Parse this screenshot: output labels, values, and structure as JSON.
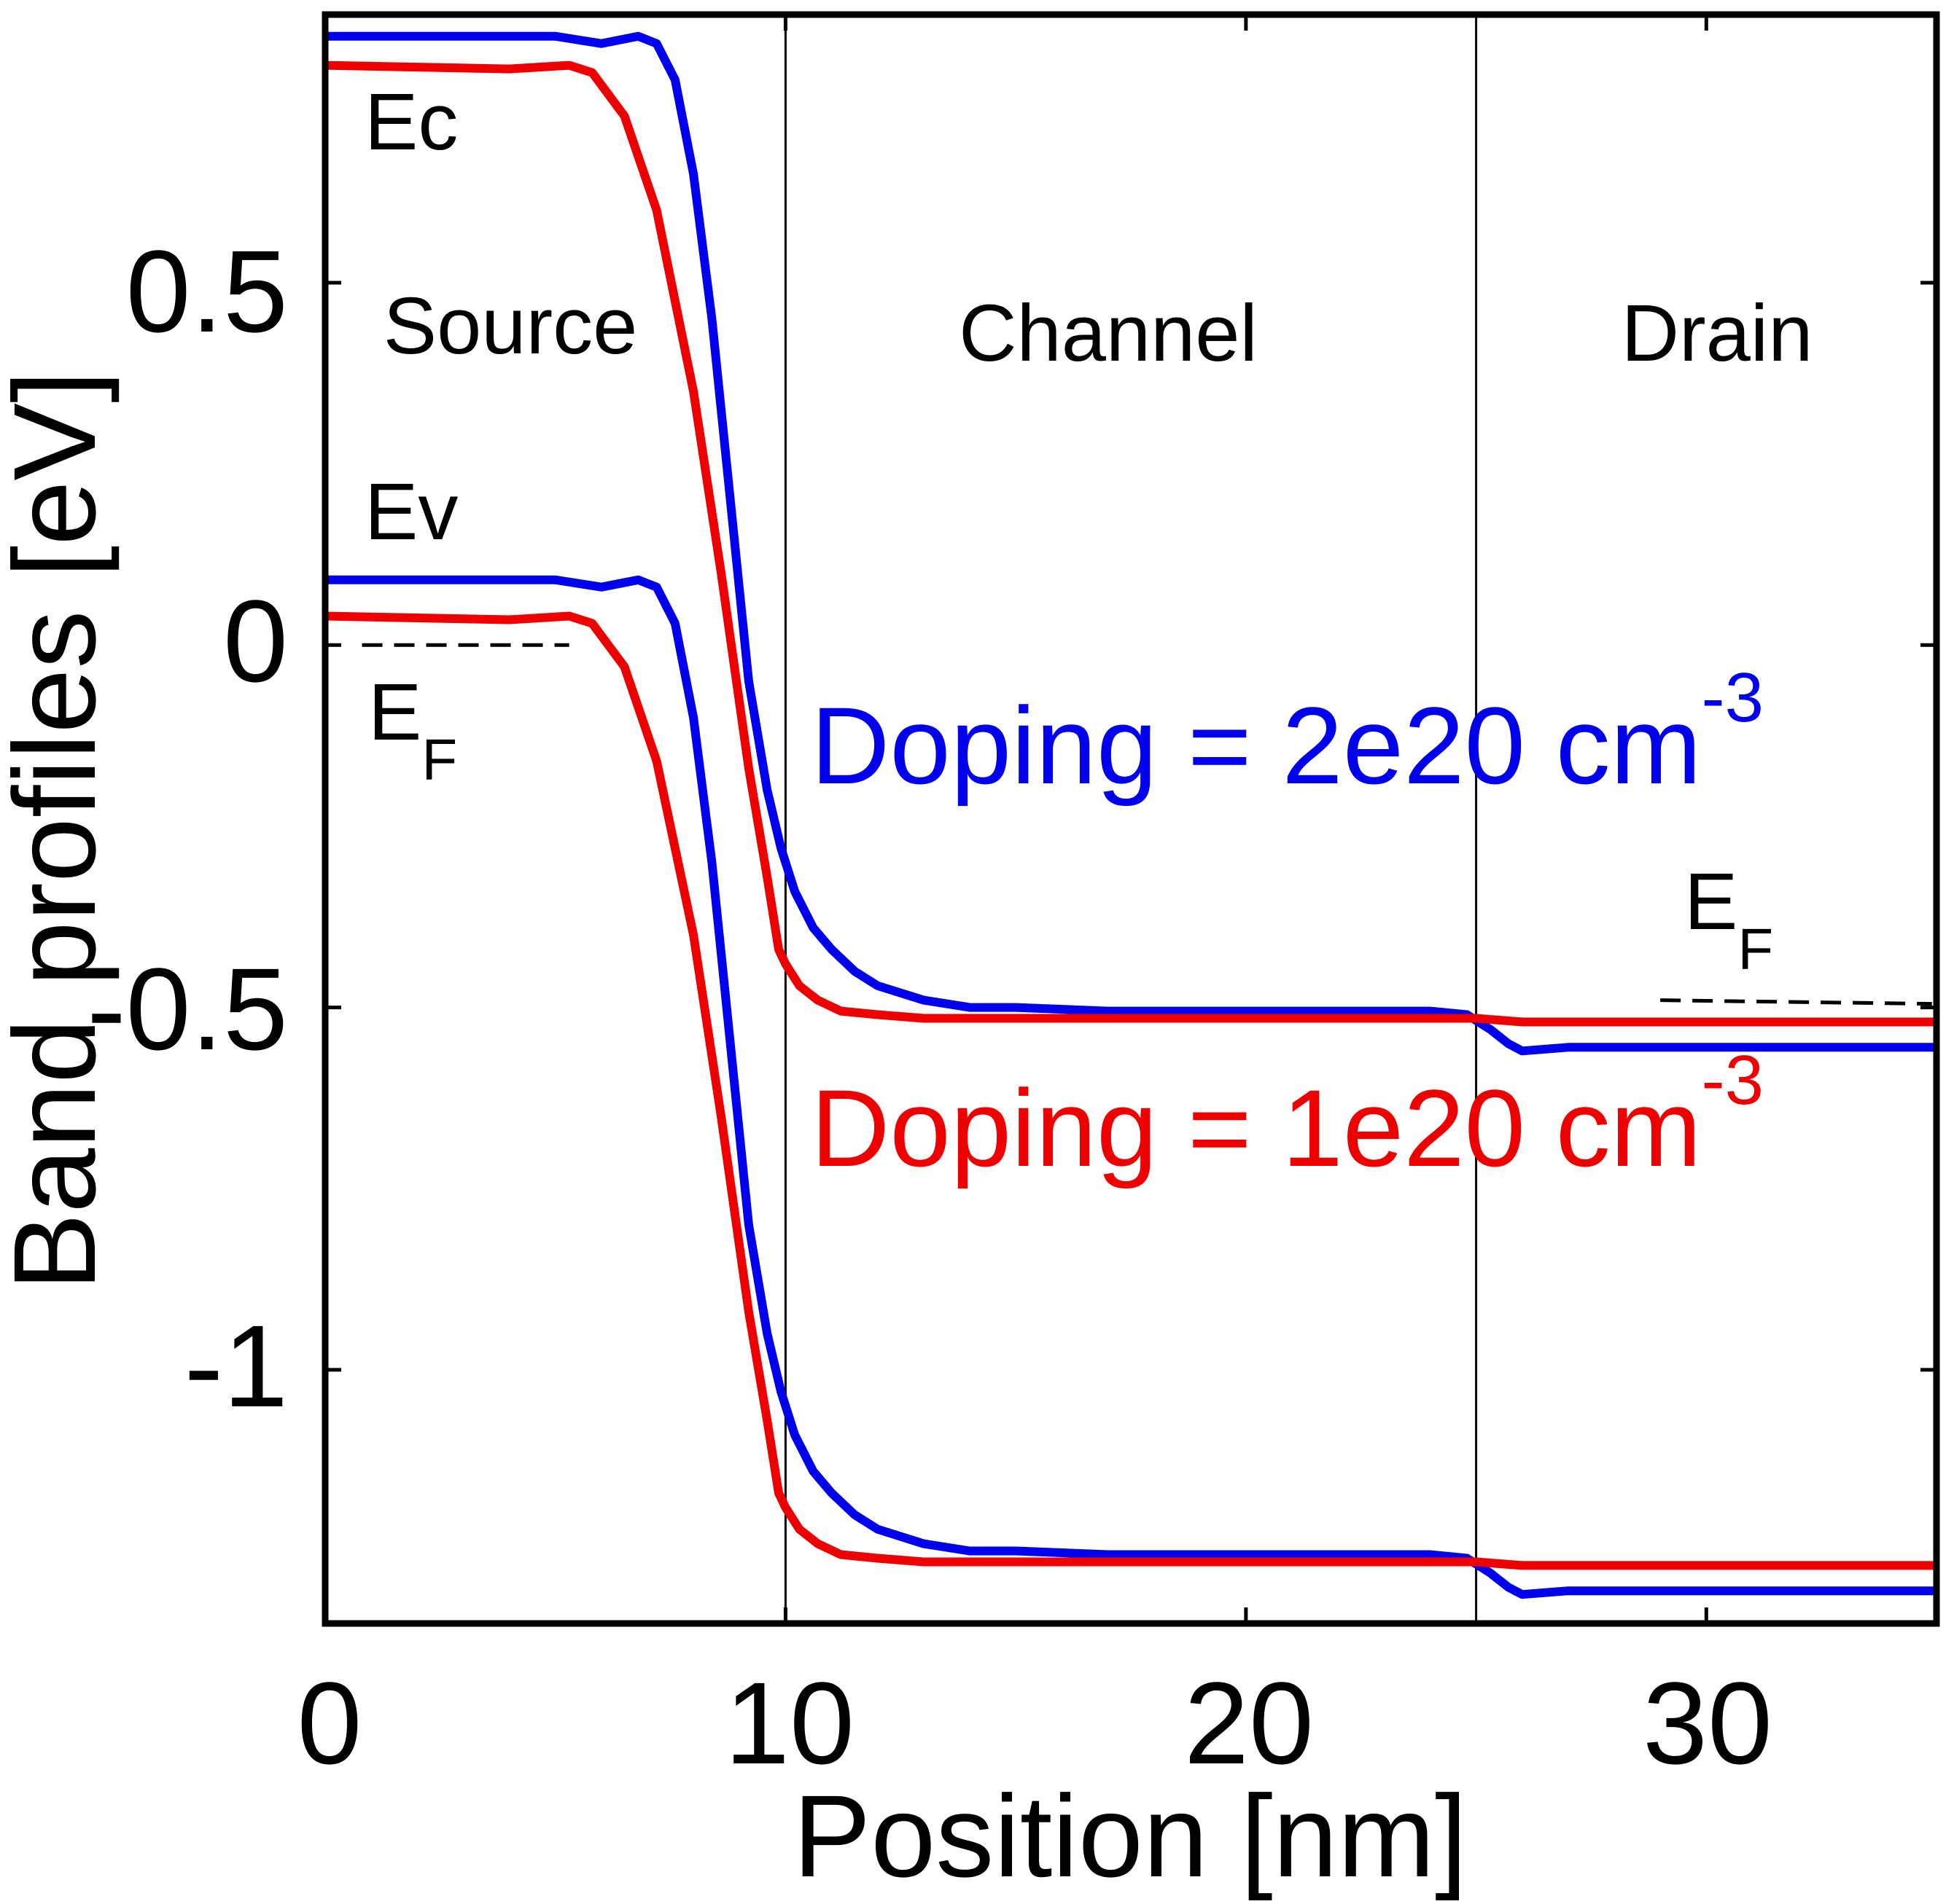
{
  "chart_data": {
    "type": "line",
    "title": "",
    "xlabel": "Position [nm]",
    "ylabel": "Band profiles [eV]",
    "xlim": [
      0,
      35
    ],
    "ylim": [
      -1.35,
      0.87
    ],
    "xticks": [
      0,
      10,
      20,
      30
    ],
    "xtick_labels": [
      "0",
      "10",
      "20",
      "30"
    ],
    "yticks": [
      0.5,
      0,
      -0.5,
      -1
    ],
    "ytick_labels": [
      "0.5",
      "0",
      "-0.5",
      "-1"
    ],
    "grid": false,
    "region_boundaries": [
      10,
      25
    ],
    "regions": [
      {
        "name": "Source",
        "label": "Source"
      },
      {
        "name": "Channel",
        "label": "Channel"
      },
      {
        "name": "Drain",
        "label": "Drain"
      }
    ],
    "band_labels": {
      "ec": "Ec",
      "ev": "Ev",
      "ef_main": "E",
      "ef_sub": "F"
    },
    "fermi_levels": [
      {
        "name": "source",
        "x": [
          0.8,
          5.3
        ],
        "y": [
          0.0,
          0.0
        ]
      },
      {
        "name": "drain",
        "x": [
          29.0,
          34.9
        ],
        "y": [
          -0.49,
          -0.495
        ]
      }
    ],
    "annotations": {
      "blue": {
        "main": "Doping = 2e20 cm",
        "sup": "-3"
      },
      "red": {
        "main": "Doping = 1e20 cm",
        "sup": "-3"
      }
    },
    "colors": {
      "blue": "#0000ee",
      "red": "#ee0000",
      "axis": "#000000"
    },
    "series": [
      {
        "name": "Ec (Doping = 2e20 cm-3)",
        "color": "#0000ee",
        "x": [
          0,
          5.0,
          6.0,
          6.8,
          7.2,
          7.6,
          8.0,
          8.4,
          8.8,
          9.2,
          9.6,
          9.9,
          10.2,
          10.6,
          11.0,
          11.5,
          12.0,
          13.0,
          14.0,
          15.0,
          17.0,
          20.0,
          24.0,
          24.8,
          25.3,
          25.7,
          26.0,
          27.0,
          30.0,
          35.0
        ],
        "y": [
          0.84,
          0.84,
          0.83,
          0.84,
          0.83,
          0.78,
          0.65,
          0.45,
          0.2,
          -0.05,
          -0.2,
          -0.28,
          -0.34,
          -0.39,
          -0.42,
          -0.45,
          -0.47,
          -0.49,
          -0.5,
          -0.5,
          -0.505,
          -0.505,
          -0.505,
          -0.51,
          -0.53,
          -0.55,
          -0.56,
          -0.555,
          -0.555,
          -0.555
        ]
      },
      {
        "name": "Ec (Doping = 1e20 cm-3)",
        "color": "#ee0000",
        "x": [
          0,
          4.0,
          5.3,
          5.8,
          6.5,
          7.2,
          8.0,
          8.6,
          9.2,
          9.6,
          9.85,
          10.0,
          10.3,
          10.7,
          11.2,
          12.0,
          13.0,
          15.0,
          20.0,
          24.0,
          25.0,
          26.0,
          30.0,
          35.0
        ],
        "y": [
          0.8,
          0.795,
          0.8,
          0.79,
          0.73,
          0.6,
          0.35,
          0.1,
          -0.17,
          -0.32,
          -0.42,
          -0.44,
          -0.47,
          -0.49,
          -0.505,
          -0.51,
          -0.515,
          -0.515,
          -0.515,
          -0.515,
          -0.515,
          -0.52,
          -0.52,
          -0.52
        ]
      },
      {
        "name": "Ev (Doping = 2e20 cm-3)",
        "color": "#0000ee",
        "x": [
          0,
          5.0,
          6.0,
          6.8,
          7.2,
          7.6,
          8.0,
          8.4,
          8.8,
          9.2,
          9.6,
          9.9,
          10.2,
          10.6,
          11.0,
          11.5,
          12.0,
          13.0,
          14.0,
          15.0,
          17.0,
          20.0,
          24.0,
          24.8,
          25.3,
          25.7,
          26.0,
          27.0,
          30.0,
          35.0
        ],
        "y": [
          0.09,
          0.09,
          0.08,
          0.09,
          0.08,
          0.03,
          -0.1,
          -0.3,
          -0.55,
          -0.8,
          -0.95,
          -1.03,
          -1.09,
          -1.14,
          -1.17,
          -1.2,
          -1.22,
          -1.24,
          -1.25,
          -1.25,
          -1.255,
          -1.255,
          -1.255,
          -1.26,
          -1.28,
          -1.3,
          -1.31,
          -1.305,
          -1.305,
          -1.305
        ]
      },
      {
        "name": "Ev (Doping = 1e20 cm-3)",
        "color": "#ee0000",
        "x": [
          0,
          4.0,
          5.3,
          5.8,
          6.5,
          7.2,
          8.0,
          8.6,
          9.2,
          9.6,
          9.85,
          10.0,
          10.3,
          10.7,
          11.2,
          12.0,
          13.0,
          15.0,
          20.0,
          24.0,
          25.0,
          26.0,
          30.0,
          35.0
        ],
        "y": [
          0.04,
          0.035,
          0.04,
          0.03,
          -0.03,
          -0.16,
          -0.4,
          -0.65,
          -0.92,
          -1.07,
          -1.17,
          -1.19,
          -1.22,
          -1.24,
          -1.255,
          -1.26,
          -1.265,
          -1.265,
          -1.265,
          -1.265,
          -1.265,
          -1.27,
          -1.27,
          -1.27
        ]
      }
    ]
  }
}
